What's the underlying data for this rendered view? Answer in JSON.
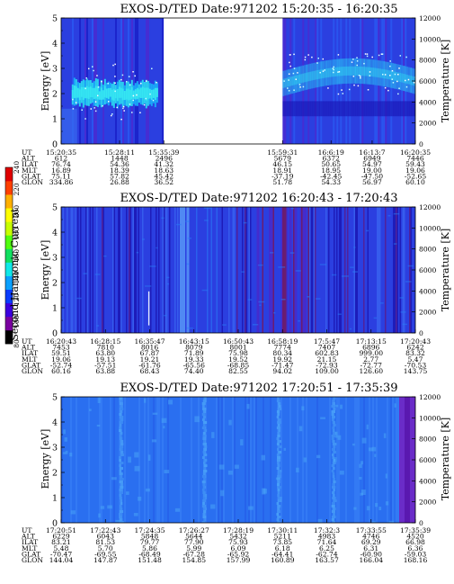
{
  "colors": {
    "background": "#ffffff",
    "panel_base": "#2b3fe0",
    "panel_deep": "#1c12b8",
    "panel3_base": "#2a6ff0",
    "cyan": "#35e6f2",
    "violet": "#6a2cc8",
    "dark_red": "#7a1454",
    "frame": "#000000"
  },
  "colorbar": {
    "label": "Second Harmonic Current",
    "ticks": [
      "80",
      "100",
      "120",
      "140",
      "160",
      "180",
      "200",
      "220",
      "240"
    ],
    "colors": [
      "#000000",
      "#7a00a0",
      "#3c00e0",
      "#0a3cff",
      "#0aa0ff",
      "#10e8e8",
      "#10e060",
      "#50ff10",
      "#c8ff00",
      "#ffff00",
      "#ffb000",
      "#ff4000",
      "#e00000"
    ],
    "low_color": "#000000",
    "high_color": "#ff0000"
  },
  "chart_data": [
    {
      "type": "heatmap",
      "title": "EXOS-D/TED   Date:971202   15:20:35 - 16:20:35",
      "ylabel": "Energy [eV]",
      "ylabel_right": "Temperature [K]",
      "ylim": [
        0,
        5
      ],
      "ylim_right": [
        0,
        12000
      ],
      "yticks": [
        "0",
        "1",
        "2",
        "3",
        "4",
        "5"
      ],
      "yticks_right": [
        "0",
        "2000",
        "4000",
        "6000",
        "8000",
        "10000",
        "12000"
      ],
      "data_gap": {
        "from_fraction": 0.29,
        "to_fraction": 0.625
      },
      "row_labels": [
        "UT",
        "ALT",
        "ILAT",
        "MLT",
        "GLAT",
        "GLON"
      ],
      "columns": [
        [
          "15:20:35",
          "612",
          "76.74",
          "16.89",
          "75.11",
          "334.86"
        ],
        [
          "15:28:11",
          "1448",
          "54.36",
          "18.39",
          "57.82",
          "26.88"
        ],
        [
          "15:35:39",
          "2496",
          "41.32",
          "18.63",
          "45.42",
          "36.52"
        ],
        [
          "15:59:31",
          "5679",
          "46.15",
          "18.91",
          "-37.19",
          "51.78"
        ],
        [
          "16:6:19",
          "6372",
          "50.65",
          "18.95",
          "-42.45",
          "54.33"
        ],
        [
          "16:13:7",
          "6949",
          "54.97",
          "19.00",
          "-47.50",
          "56.97"
        ],
        [
          "16:20:35",
          "7446",
          "59.43",
          "19.06",
          "-52.65",
          "60.10"
        ]
      ],
      "column_positions": [
        0.0,
        0.165,
        0.29,
        0.625,
        0.762,
        0.878,
        1.0
      ],
      "features": [
        {
          "type": "band",
          "label": "",
          "x_from": 0.03,
          "x_to": 0.27,
          "y_center": 2.0,
          "y_half_width": 0.45
        }
      ]
    },
    {
      "type": "heatmap",
      "title": "EXOS-D/TED   Date:971202   16:20:43 - 17:20:43",
      "ylabel": "Energy [eV]",
      "ylabel_right": "Temperature [K]",
      "ylim": [
        0,
        5
      ],
      "ylim_right": [
        0,
        12000
      ],
      "yticks": [
        "0",
        "1",
        "2",
        "3",
        "4",
        "5"
      ],
      "yticks_right": [
        "0",
        "2000",
        "4000",
        "6000",
        "8000",
        "10000",
        "12000"
      ],
      "row_labels": [
        "UT",
        "ALT",
        "ILAT",
        "MLT",
        "GLAT",
        "GLON"
      ],
      "columns": [
        [
          "16:20:43",
          "7453",
          "59.51",
          "19.06",
          "-52.74",
          "60.16"
        ],
        [
          "16:28:15",
          "7810",
          "63.80",
          "19.13",
          "-57.51",
          "63.88"
        ],
        [
          "16:35:47",
          "8016",
          "67.87",
          "19.21",
          "-61.76",
          "68.43"
        ],
        [
          "16:43:15",
          "8079",
          "71.89",
          "19.33",
          "-65.56",
          "74.40"
        ],
        [
          "16:50:43",
          "8001",
          "75.98",
          "19.52",
          "-68.85",
          "82.55"
        ],
        [
          "16:58:19",
          "7774",
          "80.34",
          "19.92",
          "-71.47",
          "94.02"
        ],
        [
          "17:5:47",
          "7407",
          "602.83",
          "21.15",
          "-72.93",
          "109.00"
        ],
        [
          "17:13:15",
          "6896",
          "999.00",
          "2.77",
          "-72.77",
          "126.60"
        ],
        [
          "17:20:43",
          "6242",
          "83.32",
          "5.47",
          "-70.53",
          "143.75"
        ]
      ],
      "column_positions": [
        0.0,
        0.125,
        0.25,
        0.375,
        0.5,
        0.625,
        0.75,
        0.875,
        1.0
      ]
    },
    {
      "type": "heatmap",
      "title": "EXOS-D/TED   Date:971202   17:20:51 - 17:35:39",
      "ylabel": "Energy [eV]",
      "ylabel_right": "Temperature [K]",
      "ylim": [
        0,
        5
      ],
      "ylim_right": [
        0,
        12000
      ],
      "yticks": [
        "0",
        "1",
        "2",
        "3",
        "4",
        "5"
      ],
      "yticks_right": [
        "0",
        "2000",
        "4000",
        "6000",
        "8000",
        "10000",
        "12000"
      ],
      "row_labels": [
        "UT",
        "ALT",
        "ILAT",
        "MLT",
        "GLAT",
        "GLON"
      ],
      "columns": [
        [
          "17:20:51",
          "6229",
          "83.21",
          "5.48",
          "-70.47",
          "144.04"
        ],
        [
          "17:22:43",
          "6043",
          "81.53",
          "5.70",
          "-69.55",
          "147.87"
        ],
        [
          "17:24:35",
          "5848",
          "79.77",
          "5.86",
          "-68.49",
          "151.48"
        ],
        [
          "17:26:27",
          "5644",
          "77.90",
          "5.99",
          "-67.28",
          "154.85"
        ],
        [
          "17:28:19",
          "5432",
          "75.93",
          "6.09",
          "-65.92",
          "157.99"
        ],
        [
          "17:30:11",
          "5211",
          "73.85",
          "6.18",
          "-64.41",
          "160.89"
        ],
        [
          "17:32:3",
          "4983",
          "71.64",
          "6.25",
          "-62.74",
          "163.57"
        ],
        [
          "17:33:55",
          "4746",
          "69.29",
          "6.31",
          "-60.90",
          "166.04"
        ],
        [
          "17:35:39",
          "4520",
          "66.98",
          "6.36",
          "-59.03",
          "168.16"
        ]
      ],
      "column_positions": [
        0.0,
        0.125,
        0.25,
        0.375,
        0.5,
        0.625,
        0.75,
        0.875,
        1.0
      ]
    }
  ]
}
